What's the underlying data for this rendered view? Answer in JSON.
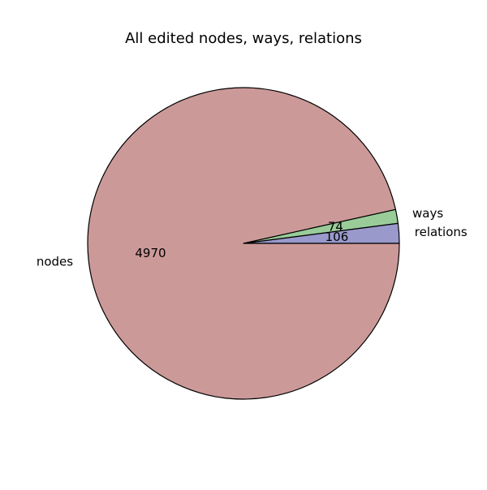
{
  "chart_data": {
    "type": "pie",
    "title": "All edited nodes, ways, relations",
    "start_angle_deg": 0,
    "direction": "counterclockwise",
    "slices": [
      {
        "label": "relations",
        "value": 106,
        "value_label": "106",
        "color": "#9999cc"
      },
      {
        "label": "ways",
        "value": 74,
        "value_label": "74",
        "color": "#99cc99"
      },
      {
        "label": "nodes",
        "value": 4970,
        "value_label": "4970",
        "color": "#cc9999"
      }
    ],
    "edge_color": "#000000"
  }
}
